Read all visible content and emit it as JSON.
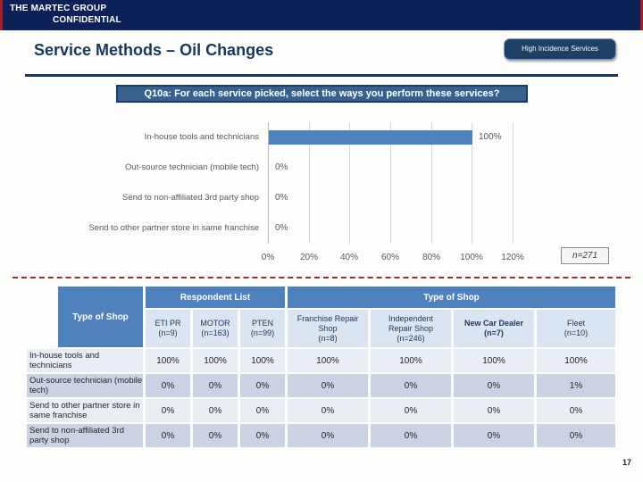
{
  "header": {
    "company": "THE MARTEC GROUP",
    "confidential": "CONFIDENTIAL"
  },
  "slide": {
    "title": "Service Methods – Oil Changes",
    "badge": "High Incidence Services",
    "question": "Q10a: For each service picked, select the ways you perform these services?",
    "page_number": "17"
  },
  "chart_data": {
    "type": "bar",
    "orientation": "horizontal",
    "categories": [
      "In-house tools and technicians",
      "Out-source technician (mobile tech)",
      "Send to non-affiliated 3rd party shop",
      "Send to other partner store in same franchise"
    ],
    "values": [
      100,
      0,
      0,
      0
    ],
    "data_labels": [
      "100%",
      "0%",
      "0%",
      "0%"
    ],
    "x_ticks": [
      "0%",
      "20%",
      "40%",
      "60%",
      "80%",
      "100%",
      "120%"
    ],
    "xlim": [
      0,
      120
    ],
    "grid": true,
    "bar_color": "#4f81bd",
    "sample_label": "n=271"
  },
  "table": {
    "corner_header": "Type of Shop",
    "groups": [
      {
        "label": "Respondent List",
        "span": 3
      },
      {
        "label": "Type of Shop",
        "span": 4
      }
    ],
    "columns": [
      {
        "label": "ETI PR\n(n=9)",
        "bold": false
      },
      {
        "label": "MOTOR\n(n=163)",
        "bold": false
      },
      {
        "label": "PTEN\n(n=99)",
        "bold": false
      },
      {
        "label": "Franchise Repair\nShop\n(n=8)",
        "bold": false
      },
      {
        "label": "Independent\nRepair Shop\n(n=246)",
        "bold": false
      },
      {
        "label": "New Car Dealer\n(n=7)",
        "bold": true
      },
      {
        "label": "Fleet\n(n=10)",
        "bold": false
      }
    ],
    "rows": [
      {
        "label": "In-house tools and technicians",
        "values": [
          "100%",
          "100%",
          "100%",
          "100%",
          "100%",
          "100%",
          "100%"
        ]
      },
      {
        "label": "Out-source technician (mobile tech)",
        "values": [
          "0%",
          "0%",
          "0%",
          "0%",
          "0%",
          "0%",
          "1%"
        ]
      },
      {
        "label": "Send to other partner store in same franchise",
        "values": [
          "0%",
          "0%",
          "0%",
          "0%",
          "0%",
          "0%",
          "0%"
        ]
      },
      {
        "label": "Send to non-affiliated 3rd party shop",
        "values": [
          "0%",
          "0%",
          "0%",
          "0%",
          "0%",
          "0%",
          "0%"
        ]
      }
    ]
  },
  "colors": {
    "topbar_navy": "#0c2158",
    "edge_red": "#aa1e23",
    "title_navy": "#17375d",
    "banner_blue": "#36618e",
    "bar_blue": "#4f81bd",
    "subheader_bg": "#dbe5f1",
    "band_light": "#e9edf4",
    "band_dark": "#cbd3e3",
    "dashed_line_red": "#9b2d27"
  }
}
